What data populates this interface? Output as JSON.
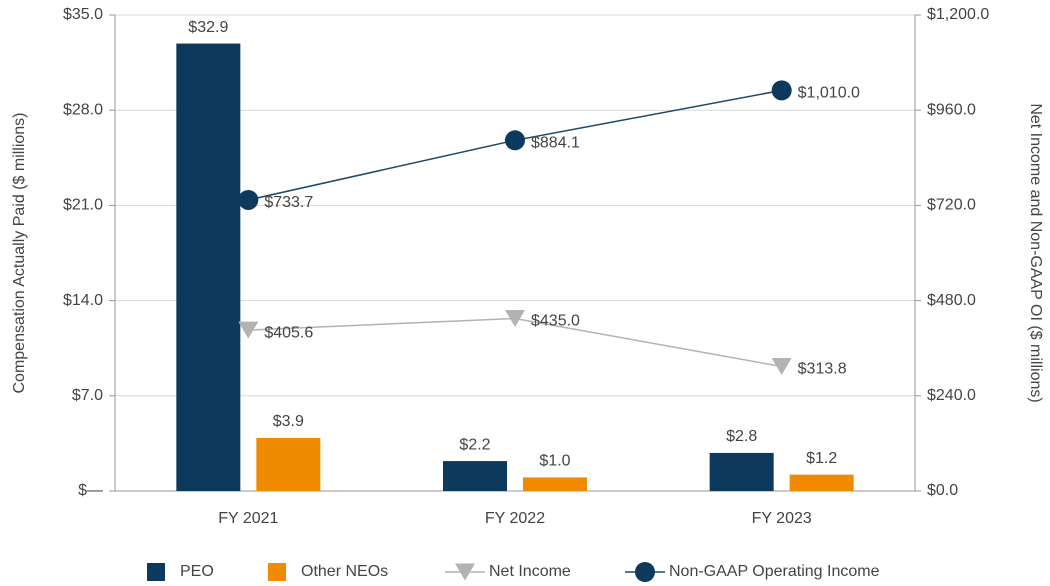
{
  "chart_data": {
    "type": "bar-line",
    "categories": [
      "FY 2021",
      "FY 2022",
      "FY 2023"
    ],
    "series": [
      {
        "name": "PEO",
        "type": "bar",
        "color": "#0d3a5c",
        "values": [
          32.9,
          2.2,
          2.8
        ],
        "value_labels": [
          "$32.9",
          "$2.2",
          "$2.8"
        ]
      },
      {
        "name": "Other NEOs",
        "type": "bar",
        "color": "#f08a00",
        "values": [
          3.9,
          1.0,
          1.2
        ],
        "value_labels": [
          "$3.9",
          "$1.0",
          "$1.2"
        ]
      },
      {
        "name": "Net Income",
        "type": "line",
        "axis": "y2",
        "marker": "triangle",
        "color": "#b3b3b3",
        "values": [
          405.6,
          435.0,
          313.8
        ],
        "value_labels": [
          "$405.6",
          "$435.0",
          "$313.8"
        ]
      },
      {
        "name": "Non-GAAP Operating Income",
        "type": "line",
        "axis": "y2",
        "marker": "circle",
        "color": "#0d3a5c",
        "values": [
          733.7,
          884.1,
          1010.0
        ],
        "value_labels": [
          "$733.7",
          "$884.1",
          "$1,010.0"
        ]
      }
    ],
    "ylabel": "Compensation Actually Paid ($ millions)",
    "y2label": "Net Income and Non-GAAP OI ($ millions)",
    "ylim": [
      0,
      35
    ],
    "yticks": [
      {
        "value": 0,
        "label": "$—"
      },
      {
        "value": 7,
        "label": "$7.0"
      },
      {
        "value": 14,
        "label": "$14.0"
      },
      {
        "value": 21,
        "label": "$21.0"
      },
      {
        "value": 28,
        "label": "$28.0"
      },
      {
        "value": 35,
        "label": "$35.0"
      }
    ],
    "y2lim": [
      0,
      1200
    ],
    "y2ticks": [
      {
        "value": 0,
        "label": "$0.0"
      },
      {
        "value": 240,
        "label": "$240.0"
      },
      {
        "value": 480,
        "label": "$480.0"
      },
      {
        "value": 720,
        "label": "$720.0"
      },
      {
        "value": 960,
        "label": "$960.0"
      },
      {
        "value": 1200,
        "label": "$1,200.0"
      }
    ],
    "grid": true,
    "legend": "bottom"
  }
}
